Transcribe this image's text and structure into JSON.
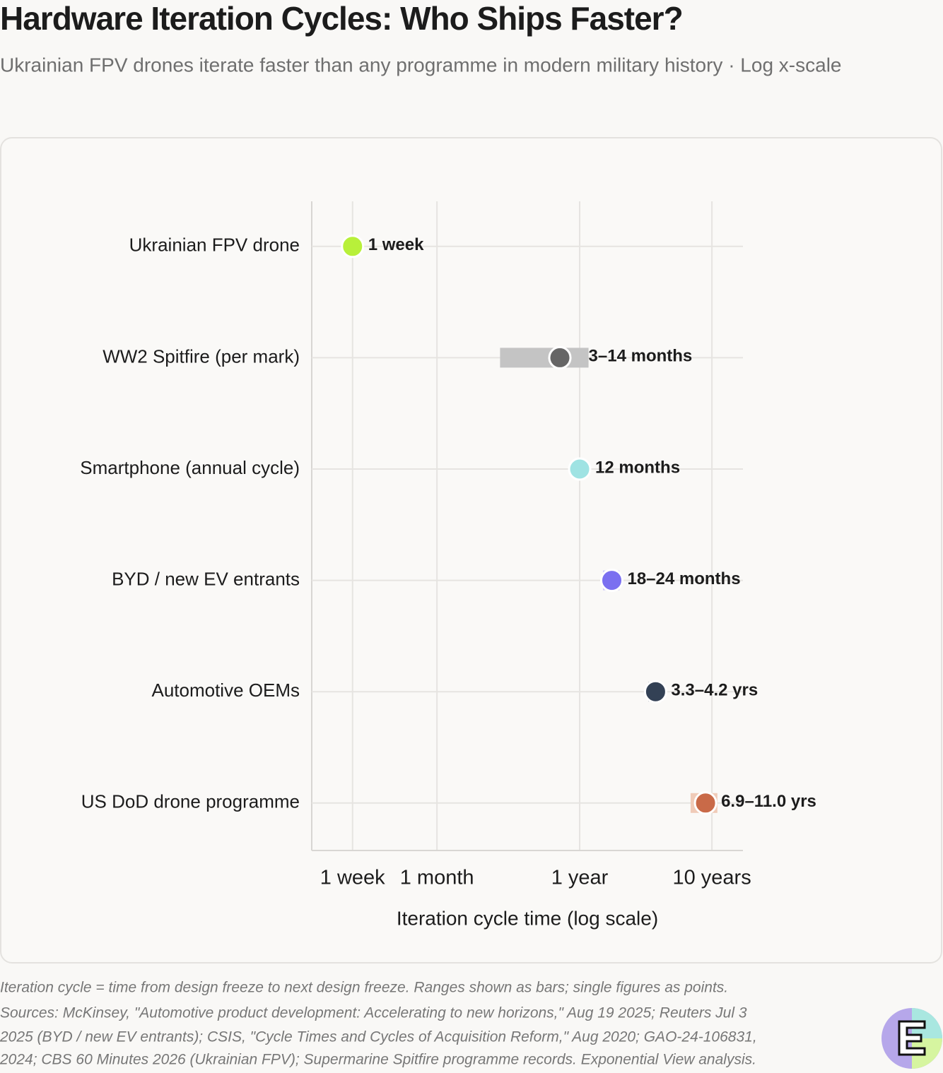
{
  "chart_data": {
    "type": "dot-range",
    "title": "Hardware Iteration Cycles: Who Ships Faster?",
    "subtitle": "Ukrainian FPV drones iterate faster than any programme in modern military history · Log x-scale",
    "x_label": "Iteration cycle time (log scale)",
    "categories": [
      "Ukrainian FPV drone",
      "WW2 Spitfire (per mark)",
      "Smartphone (annual cycle)",
      "BYD / new EV entrants",
      "Automotive OEMs",
      "US DoD drone programme"
    ],
    "values": [
      0.23,
      8.5,
      12,
      21,
      45,
      107.4
    ],
    "low": [
      null,
      3,
      null,
      18,
      39.6,
      82.8
    ],
    "high": [
      null,
      14,
      null,
      24,
      50.4,
      132
    ],
    "value_labels": [
      "1 week",
      "3–14 months",
      "12 months",
      "18–24 months",
      "3.3–4.2 yrs",
      "6.9–11.0 yrs"
    ],
    "colors": [
      "#b8f03a",
      "#666666",
      "#9fe3e3",
      "#7a6ff0",
      "#334155",
      "#c96a48"
    ],
    "range_colors": [
      null,
      "#c4c4c4",
      null,
      "#cfcaf8",
      "#b9c0ca",
      "#f0cbb8"
    ],
    "xscale": "log",
    "xlim": [
      0.113,
      206
    ],
    "xticks": [
      {
        "value": 0.23,
        "label": "1 week"
      },
      {
        "value": 1,
        "label": "1 month"
      },
      {
        "value": 12,
        "label": "1 year"
      },
      {
        "value": 120,
        "label": "10 years"
      }
    ],
    "grid": true,
    "notes": [
      "Iteration cycle = time from design freeze to next design freeze. Ranges shown as bars; single figures as points.",
      "Sources: McKinsey, \"Automotive product development: Accelerating to new horizons,\" Aug 19 2025; Reuters Jul 3",
      "2025 (BYD / new EV entrants); CSIS, \"Cycle Times and Cycles of Acquisition Reform,\" Aug 2020; GAO-24-106831,",
      "2024; CBS 60 Minutes 2026 (Ukrainian FPV); Supermarine Spitfire programme records. Exponential View analysis."
    ]
  }
}
